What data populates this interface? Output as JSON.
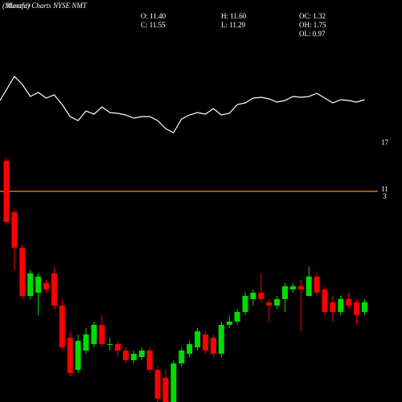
{
  "chart_data": [
    {
      "type": "candlestick",
      "title": "(Munafa) Charts NYSE NMT",
      "subtitle": "Monthly",
      "stats": [
        "O: 11.40",
        "C: 11.55",
        "H: 11.60",
        "L: 11.29",
        "OC: 1.32",
        "OH: 1.75",
        "OL: 0.97"
      ],
      "annotations": [
        "17",
        "11",
        "3"
      ],
      "ref_line": 15.55,
      "ref_color": "#d07020",
      "up_color": "#00dd00",
      "down_color": "#ff0000",
      "ylim": [
        9,
        17
      ],
      "open": [
        16.5,
        14.9,
        13.8,
        12.3,
        12.4,
        12.7,
        13.0,
        12.0,
        11.0,
        10.0,
        10.6,
        10.8,
        11.4,
        10.8,
        10.8,
        10.6,
        10.3,
        10.4,
        10.6,
        10.0,
        9.75,
        9.0,
        10.2,
        10.5,
        10.7,
        11.1,
        11.0,
        10.5,
        11.4,
        11.5,
        11.8,
        12.2,
        12.4,
        12.1,
        12.0,
        12.2,
        12.5,
        12.6,
        12.3,
        12.9,
        12.5,
        12.1,
        11.8,
        12.2,
        12.1,
        11.8
      ],
      "close": [
        14.6,
        13.8,
        12.3,
        13.0,
        12.9,
        12.5,
        12.0,
        10.7,
        9.9,
        10.9,
        11.1,
        11.4,
        10.8,
        10.8,
        10.6,
        10.3,
        10.5,
        10.6,
        10.0,
        9.1,
        9.0,
        10.2,
        10.6,
        10.8,
        11.2,
        10.6,
        10.5,
        11.4,
        11.5,
        11.8,
        12.3,
        12.4,
        12.2,
        12.0,
        12.2,
        12.6,
        12.6,
        12.5,
        12.9,
        12.4,
        11.8,
        11.8,
        12.2,
        12.0,
        11.7,
        12.1
      ],
      "high": [
        16.6,
        15.0,
        13.9,
        13.1,
        13.0,
        12.8,
        13.2,
        12.2,
        11.2,
        11.1,
        11.3,
        11.5,
        11.7,
        11.0,
        10.9,
        10.7,
        10.6,
        10.7,
        10.7,
        10.1,
        10.0,
        10.3,
        10.7,
        10.9,
        11.3,
        11.2,
        11.1,
        11.5,
        11.7,
        11.9,
        12.4,
        12.5,
        13.0,
        12.2,
        12.3,
        12.7,
        12.7,
        12.8,
        13.2,
        13.0,
        12.6,
        12.3,
        12.3,
        12.4,
        12.2,
        12.2
      ],
      "low": [
        14.5,
        13.1,
        12.2,
        12.2,
        11.7,
        12.4,
        11.9,
        10.6,
        9.8,
        9.9,
        10.5,
        10.7,
        10.7,
        10.6,
        10.4,
        10.2,
        10.2,
        10.3,
        9.9,
        9.0,
        9.0,
        9.0,
        10.1,
        10.4,
        10.6,
        10.5,
        10.4,
        10.4,
        11.3,
        11.4,
        11.7,
        12.0,
        12.1,
        11.5,
        11.9,
        11.8,
        12.4,
        11.2,
        12.3,
        12.3,
        11.7,
        11.5,
        11.7,
        11.9,
        11.4,
        11.7
      ]
    },
    {
      "type": "line",
      "color": "#ffffff",
      "ylim": [
        0,
        100
      ],
      "values": [
        55,
        85,
        75,
        60,
        65,
        58,
        62,
        50,
        35,
        30,
        42,
        38,
        47,
        40,
        39,
        37,
        33,
        35,
        35,
        30,
        20,
        15,
        32,
        37,
        40,
        38,
        45,
        37,
        39,
        50,
        52,
        58,
        59,
        57,
        53,
        55,
        60,
        59,
        60,
        64,
        58,
        52,
        56,
        55,
        53,
        56
      ]
    }
  ]
}
